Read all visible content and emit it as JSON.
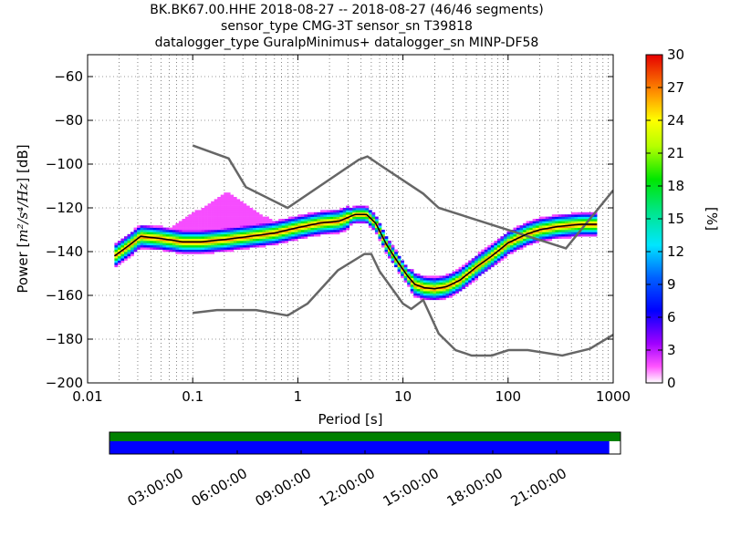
{
  "title": {
    "line1": "BK.BK67.00.HHE   2018-08-27 -- 2018-08-27  (46/46 segments)",
    "line2": "sensor_type CMG-3T sensor_sn T39818",
    "line3": "datalogger_type GuralpMinimus+ datalogger_sn MINP-DF58"
  },
  "chart_data": {
    "type": "heatmap",
    "xlabel": "Period [s]",
    "ylabel_prefix": "Power [",
    "ylabel_math": "m²/s⁴/Hz",
    "ylabel_suffix": "] [dB]",
    "xscale": "log",
    "xlim": [
      0.01,
      1000
    ],
    "ylim": [
      -200,
      -50
    ],
    "x_ticks": [
      0.01,
      0.1,
      1,
      10,
      100,
      1000
    ],
    "x_tick_labels": [
      "0.01",
      "0.1",
      "1",
      "10",
      "100",
      "1000"
    ],
    "y_ticks": [
      -200,
      -180,
      -160,
      -140,
      -120,
      -100,
      -80,
      -60
    ],
    "y_tick_labels": [
      "−200",
      "−180",
      "−160",
      "−140",
      "−120",
      "−100",
      "−80",
      "−60"
    ],
    "grid": "dotted",
    "colorbar": {
      "label": "[%]",
      "range": [
        0,
        30
      ],
      "ticks": [
        0,
        3,
        6,
        9,
        12,
        15,
        18,
        21,
        24,
        27,
        30
      ],
      "tick_labels": [
        "0",
        "3",
        "6",
        "9",
        "12",
        "15",
        "18",
        "21",
        "24",
        "27",
        "30"
      ],
      "colormap": "pqlx"
    },
    "noise_models": {
      "color": "#666666",
      "high": {
        "period": [
          0.1,
          0.22,
          0.32,
          0.8,
          3.8,
          4.6,
          6.3,
          15.6,
          21.9,
          354.8,
          1000
        ],
        "power": [
          -91.5,
          -97.4,
          -110.5,
          -120,
          -98,
          -96.5,
          -101,
          -113.5,
          -120,
          -138.5,
          -112
        ]
      },
      "low": {
        "period": [
          0.1,
          0.17,
          0.4,
          0.8,
          1.24,
          2.4,
          4.3,
          5,
          6,
          10,
          12,
          15.6,
          21.9,
          31.6,
          45,
          70,
          101,
          154,
          328,
          600,
          1000
        ],
        "power": [
          -168,
          -166.7,
          -166.7,
          -169.2,
          -163.7,
          -148.6,
          -141.1,
          -141.1,
          -149,
          -163.8,
          -166.2,
          -162.1,
          -177.5,
          -185,
          -187.5,
          -187.5,
          -185,
          -185,
          -187.5,
          -184.4,
          -178
        ]
      }
    },
    "median": {
      "color": "#000000",
      "period": [
        0.018,
        0.025,
        0.032,
        0.05,
        0.08,
        0.12,
        0.2,
        0.35,
        0.6,
        1,
        1.6,
        2.5,
        3.5,
        4.5,
        5.5,
        7,
        9,
        11,
        13,
        16,
        20,
        26,
        35,
        50,
        70,
        100,
        150,
        200,
        300,
        500,
        700
      ],
      "power": [
        -142,
        -137,
        -133,
        -134,
        -135.5,
        -135.5,
        -134.5,
        -133,
        -131.5,
        -129,
        -127,
        -126,
        -123,
        -123,
        -127,
        -137,
        -145,
        -151,
        -155,
        -156.5,
        -157,
        -156,
        -153,
        -147,
        -142,
        -136,
        -132,
        -130,
        -128.5,
        -127.5,
        -127.5
      ]
    },
    "extra_curves": {
      "period": [
        0.06,
        0.1,
        0.16,
        0.22,
        0.35,
        0.6,
        1
      ],
      "upper_power": [
        -130,
        -123,
        -117,
        -113,
        -120,
        -127,
        -129
      ],
      "lower_power": [
        -138,
        -139,
        -138,
        -137,
        -136,
        -133,
        -130
      ]
    }
  },
  "data_coverage": {
    "time_labels": [
      "03:00:00",
      "06:00:00",
      "09:00:00",
      "12:00:00",
      "15:00:00",
      "18:00:00",
      "21:00:00"
    ],
    "coverage_fraction": 0.978,
    "segments_color": "#008000",
    "data_color": "#0000ff"
  }
}
